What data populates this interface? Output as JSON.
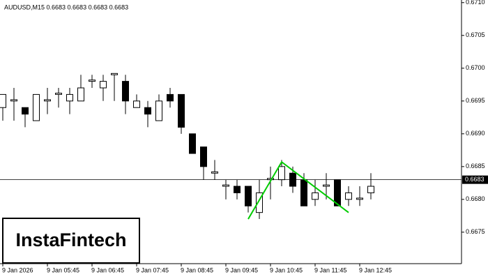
{
  "chart_data": {
    "type": "candlestick",
    "title": "AUDUSD,M15  0.6683 0.6683 0.6683 0.6683",
    "watermark": "InstaFintech",
    "x": [
      "9 Jan 2026",
      null,
      null,
      null,
      "9 Jan 05:45",
      null,
      null,
      null,
      "9 Jan 06:45",
      null,
      null,
      null,
      "9 Jan 07:45",
      null,
      null,
      null,
      "9 Jan 08:45",
      null,
      null,
      null,
      "9 Jan 09:45",
      null,
      null,
      null,
      "9 Jan 10:45",
      null,
      null,
      null,
      "9 Jan 11:45",
      null,
      null,
      null,
      "9 Jan 12:45",
      null
    ],
    "open": [
      0.6694,
      0.6695,
      0.6694,
      0.6692,
      0.6695,
      0.6696,
      0.6695,
      0.6695,
      0.6698,
      0.6697,
      0.6699,
      0.6698,
      0.6694,
      0.6694,
      0.6692,
      0.6696,
      0.6696,
      0.669,
      0.6688,
      0.6684,
      0.6682,
      0.6682,
      0.6682,
      0.6678,
      0.6683,
      0.6683,
      0.6684,
      0.6683,
      0.668,
      0.6682,
      0.6683,
      0.668,
      0.668,
      0.6681
    ],
    "high": [
      0.6696,
      0.6697,
      0.6694,
      0.6696,
      0.6697,
      0.6697,
      0.6697,
      0.6699,
      0.6699,
      0.6699,
      0.6699,
      0.6699,
      0.6696,
      0.6695,
      0.6696,
      0.6697,
      0.6696,
      0.669,
      0.6688,
      0.6686,
      0.6683,
      0.6683,
      0.6682,
      0.6683,
      0.6685,
      0.6686,
      0.6685,
      0.6684,
      0.6683,
      0.6684,
      0.6683,
      0.6682,
      0.6682,
      0.6684
    ],
    "low": [
      0.6692,
      0.6692,
      0.6691,
      0.6692,
      0.6693,
      0.6694,
      0.6693,
      0.6695,
      0.6697,
      0.6695,
      0.6695,
      0.6693,
      0.6694,
      0.6691,
      0.6692,
      0.6694,
      0.669,
      0.6687,
      0.6683,
      0.6683,
      0.668,
      0.668,
      0.6678,
      0.6677,
      0.668,
      0.6682,
      0.6681,
      0.6679,
      0.6679,
      0.668,
      0.6679,
      0.6679,
      0.6679,
      0.668
    ],
    "close": [
      0.6696,
      0.66952,
      0.6693,
      0.6696,
      0.66952,
      0.66962,
      0.6696,
      0.6697,
      0.66982,
      0.6698,
      0.66992,
      0.6695,
      0.6695,
      0.6693,
      0.6695,
      0.6695,
      0.6691,
      0.6687,
      0.6685,
      0.66842,
      0.66822,
      0.6681,
      0.6679,
      0.6681,
      0.66832,
      0.6685,
      0.6682,
      0.6679,
      0.6681,
      0.66822,
      0.6679,
      0.6681,
      0.66802,
      0.6682
    ],
    "pattern": {
      "color": "#00cc00",
      "x": [
        22,
        25,
        31
      ],
      "values": [
        0.6677,
        0.66857,
        0.6678
      ]
    },
    "last_price": 0.6683,
    "ylim": [
      0.66702,
      0.67104
    ],
    "yticks": [
      {
        "value": 0.6675,
        "label": "0.6675"
      },
      {
        "value": 0.668,
        "label": "0.6680"
      },
      {
        "value": 0.6685,
        "label": "0.6685"
      },
      {
        "value": 0.669,
        "label": "0.6690"
      },
      {
        "value": 0.6695,
        "label": "0.6695"
      },
      {
        "value": 0.67,
        "label": "0.6700"
      },
      {
        "value": 0.6705,
        "label": "0.6705"
      },
      {
        "value": 0.671,
        "label": "0.6710"
      }
    ]
  }
}
